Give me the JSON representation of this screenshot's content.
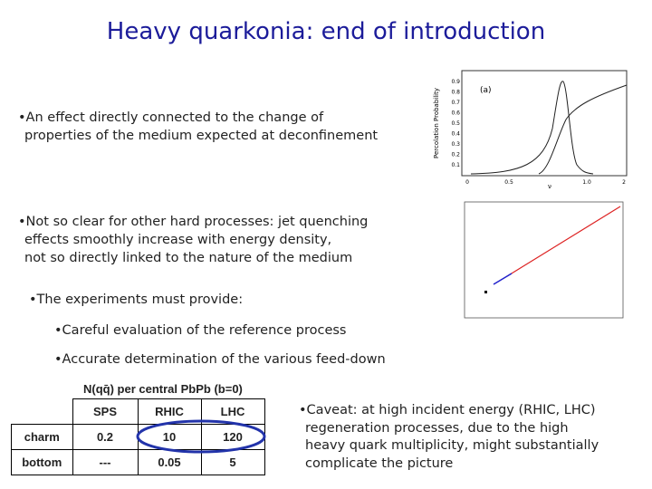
{
  "header": {
    "title": "Heavy quarkonia: end of introduction"
  },
  "bullets": [
    {
      "lines": [
        "•An effect directly connected to the change of",
        "properties of the medium expected at deconfinement"
      ]
    },
    {
      "lines": [
        "•Not so clear for other hard processes: jet quenching",
        "effects smoothly increase  with energy density,",
        "not so directly linked to the nature of the medium"
      ]
    },
    {
      "lines": [
        "•The experiments must provide:"
      ]
    },
    {
      "lines": [
        "•Careful evaluation of the reference process"
      ]
    },
    {
      "lines": [
        "•Accurate determination of the various feed-down"
      ]
    }
  ],
  "plot_a": {
    "y_label": "Percolation Probability",
    "panel": "(a)",
    "yticks": [
      "0.9",
      "0.8",
      "0.7",
      "0.6",
      "0.5",
      "0.4",
      "0.3",
      "0.2",
      "0.1"
    ],
    "xticks": [
      "0",
      "0.5",
      "1.0",
      "2"
    ],
    "x_label": "ν"
  },
  "table": {
    "caption": "N(qq̄) per central PbPb (b=0)",
    "columns": [
      "SPS",
      "RHIC",
      "LHC"
    ],
    "rows": [
      {
        "label": "charm",
        "cells": [
          "0.2",
          "10",
          "120"
        ]
      },
      {
        "label": "bottom",
        "cells": [
          "---",
          "0.05",
          "5"
        ]
      }
    ]
  },
  "caveat": {
    "lines": [
      "•Caveat: at high incident energy (RHIC, LHC)",
      "regeneration processes, due to the high",
      "heavy quark multiplicity, might substantially",
      "complicate the picture"
    ]
  }
}
